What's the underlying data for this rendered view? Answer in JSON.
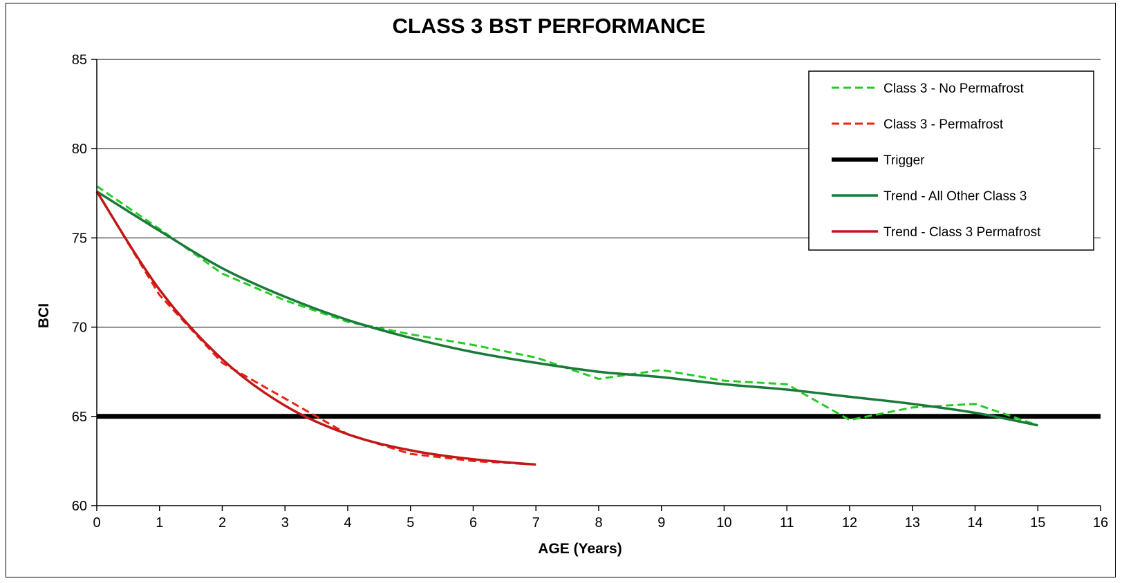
{
  "chart_data": {
    "type": "line",
    "title": "CLASS 3 BST PERFORMANCE",
    "xlabel": "AGE (Years)",
    "ylabel": "BCI",
    "xlim": [
      0,
      16
    ],
    "ylim": [
      60,
      85
    ],
    "x_ticks": [
      0,
      1,
      2,
      3,
      4,
      5,
      6,
      7,
      8,
      9,
      10,
      11,
      12,
      13,
      14,
      15,
      16
    ],
    "y_ticks": [
      60,
      65,
      70,
      75,
      80,
      85
    ],
    "grid": "horizontal major gridlines",
    "legend_position": "top-right",
    "series": [
      {
        "name": "Class 3 - No Permafrost",
        "color": "#22cc22",
        "style": "dashed",
        "width": 3,
        "x": [
          0,
          1,
          2,
          3,
          4,
          5,
          6,
          7,
          8,
          9,
          10,
          11,
          12,
          13,
          14,
          15
        ],
        "y": [
          77.9,
          75.5,
          73.0,
          71.5,
          70.3,
          69.6,
          69.0,
          68.3,
          67.1,
          67.6,
          67.0,
          66.8,
          64.8,
          65.5,
          65.7,
          64.5
        ]
      },
      {
        "name": "Class 3 - Permafrost",
        "color": "#ee2211",
        "style": "dashed",
        "width": 3,
        "x": [
          0,
          1,
          2,
          3,
          4,
          5,
          6,
          7
        ],
        "y": [
          77.6,
          71.8,
          68.0,
          66.0,
          64.0,
          62.9,
          62.5,
          62.3
        ]
      },
      {
        "name": "Trigger",
        "color": "#000000",
        "style": "solid",
        "width": 7,
        "x": [
          0,
          16
        ],
        "y": [
          65,
          65
        ]
      },
      {
        "name": "Trend - All Other Class 3",
        "color": "#1a7a3a",
        "style": "solid",
        "width": 3.5,
        "x": [
          0,
          1,
          2,
          3,
          4,
          5,
          6,
          7,
          8,
          9,
          10,
          11,
          12,
          13,
          14,
          15
        ],
        "y": [
          77.6,
          75.4,
          73.3,
          71.7,
          70.4,
          69.4,
          68.6,
          68.0,
          67.5,
          67.2,
          66.8,
          66.5,
          66.1,
          65.7,
          65.2,
          64.5
        ]
      },
      {
        "name": "Trend - Class 3 Permafrost",
        "color": "#c01818",
        "style": "solid",
        "width": 3.5,
        "x": [
          0,
          1,
          2,
          3,
          4,
          5,
          6,
          7
        ],
        "y": [
          77.6,
          72.1,
          68.2,
          65.6,
          64.0,
          63.1,
          62.6,
          62.3
        ]
      }
    ]
  }
}
